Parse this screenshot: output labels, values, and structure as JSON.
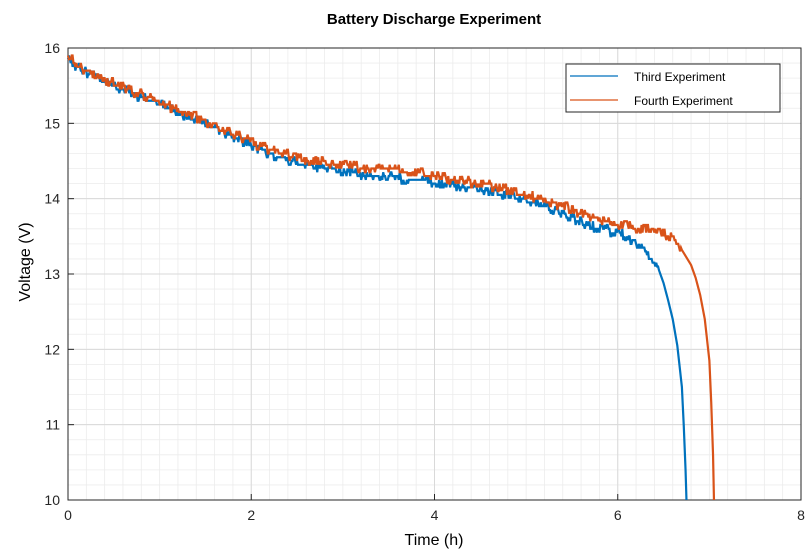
{
  "chart_data": {
    "type": "line",
    "title": "Battery Discharge Experiment",
    "xlabel": "Time (h)",
    "ylabel": "Voltage (V)",
    "xlim": [
      0,
      8
    ],
    "ylim": [
      10,
      16
    ],
    "xticks": [
      0,
      2,
      4,
      6,
      8
    ],
    "yticks": [
      10,
      11,
      12,
      13,
      14,
      15,
      16
    ],
    "grid": true,
    "minor_grid": true,
    "legend_position": "top-right",
    "series": [
      {
        "name": "Third Experiment",
        "color": "#0072BD",
        "x": [
          0.0,
          0.05,
          0.1,
          0.15,
          0.2,
          0.3,
          0.4,
          0.5,
          0.6,
          0.7,
          0.8,
          0.9,
          1.0,
          1.1,
          1.2,
          1.3,
          1.4,
          1.5,
          1.6,
          1.7,
          1.8,
          1.9,
          2.0,
          2.1,
          2.2,
          2.3,
          2.4,
          2.5,
          2.6,
          2.7,
          2.8,
          2.9,
          3.0,
          3.2,
          3.4,
          3.6,
          3.8,
          4.0,
          4.2,
          4.4,
          4.6,
          4.8,
          5.0,
          5.2,
          5.4,
          5.6,
          5.8,
          6.0,
          6.1,
          6.2,
          6.3,
          6.4,
          6.45,
          6.5,
          6.55,
          6.6,
          6.65,
          6.7,
          6.72,
          6.74,
          6.75
        ],
        "y": [
          15.85,
          15.8,
          15.75,
          15.7,
          15.68,
          15.62,
          15.55,
          15.5,
          15.45,
          15.4,
          15.35,
          15.3,
          15.25,
          15.2,
          15.15,
          15.1,
          15.05,
          15.0,
          14.95,
          14.88,
          14.82,
          14.78,
          14.72,
          14.65,
          14.6,
          14.55,
          14.52,
          14.48,
          14.44,
          14.42,
          14.4,
          14.38,
          14.35,
          14.32,
          14.3,
          14.28,
          14.25,
          14.22,
          14.18,
          14.14,
          14.1,
          14.05,
          13.98,
          13.9,
          13.8,
          13.68,
          13.6,
          13.55,
          13.5,
          13.42,
          13.3,
          13.15,
          13.05,
          12.88,
          12.65,
          12.4,
          12.05,
          11.5,
          11.0,
          10.4,
          10.0
        ]
      },
      {
        "name": "Fourth Experiment",
        "color": "#D95319",
        "x": [
          0.0,
          0.05,
          0.1,
          0.15,
          0.2,
          0.3,
          0.4,
          0.5,
          0.6,
          0.7,
          0.8,
          0.9,
          1.0,
          1.1,
          1.2,
          1.3,
          1.4,
          1.5,
          1.6,
          1.7,
          1.8,
          1.9,
          2.0,
          2.1,
          2.2,
          2.3,
          2.4,
          2.5,
          2.6,
          2.7,
          2.8,
          2.9,
          3.0,
          3.2,
          3.4,
          3.6,
          3.8,
          4.0,
          4.2,
          4.4,
          4.6,
          4.8,
          5.0,
          5.2,
          5.4,
          5.6,
          5.8,
          6.0,
          6.2,
          6.4,
          6.6,
          6.7,
          6.8,
          6.85,
          6.9,
          6.95,
          7.0,
          7.02,
          7.04,
          7.05
        ],
        "y": [
          15.88,
          15.83,
          15.78,
          15.73,
          15.7,
          15.65,
          15.58,
          15.53,
          15.48,
          15.43,
          15.38,
          15.33,
          15.28,
          15.23,
          15.18,
          15.12,
          15.08,
          15.03,
          14.98,
          14.92,
          14.87,
          14.82,
          14.76,
          14.7,
          14.66,
          14.62,
          14.58,
          14.55,
          14.52,
          14.5,
          14.48,
          14.46,
          14.44,
          14.42,
          14.4,
          14.38,
          14.35,
          14.3,
          14.26,
          14.22,
          14.18,
          14.12,
          14.05,
          13.98,
          13.9,
          13.8,
          13.72,
          13.66,
          13.62,
          13.58,
          13.48,
          13.32,
          13.12,
          12.95,
          12.72,
          12.4,
          11.85,
          11.3,
          10.6,
          10.0
        ]
      }
    ]
  }
}
